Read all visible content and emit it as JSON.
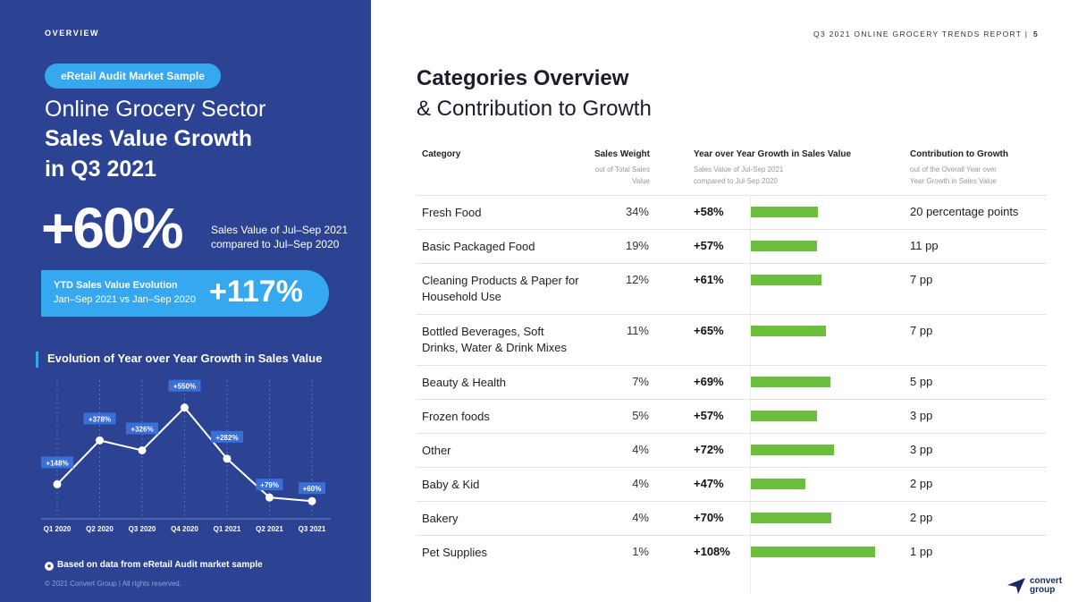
{
  "left": {
    "overview_label": "OVERVIEW",
    "pill": "eRetail Audit Market Sample",
    "headline_1": "Online Grocery Sector",
    "headline_2": "Sales Value Growth",
    "headline_3": "in Q3 2021",
    "big_value": "+60%",
    "big_sub": "Sales Value of Jul–Sep 2021 compared to Jul–Sep 2020",
    "ytd_title": "YTD Sales Value Evolution",
    "ytd_sub": "Jan–Sep 2021 vs Jan–Sep 2020",
    "ytd_value": "+117%",
    "chart_title": "Evolution of Year over Year Growth in Sales Value",
    "note": "Based on data from eRetail Audit market sample",
    "copyright": "© 2021 Convert Group  |  All rights reserved."
  },
  "chart_data": {
    "type": "line",
    "title": "Evolution of Year over Year Growth in Sales Value",
    "categories": [
      "Q1 2020",
      "Q2 2020",
      "Q3 2020",
      "Q4 2020",
      "Q1 2021",
      "Q2 2021",
      "Q3 2021"
    ],
    "values": [
      148,
      378,
      326,
      550,
      282,
      79,
      60
    ],
    "labels": [
      "+148%",
      "+378%",
      "+326%",
      "+550%",
      "+282%",
      "+79%",
      "+60%"
    ],
    "ylim": [
      0,
      600
    ],
    "grid": true,
    "colors": {
      "line": "#ffffff",
      "label_bg": "#3a6fd8",
      "grid": "#5a70b8"
    }
  },
  "right": {
    "report_header": "Q3 2021 ONLINE GROCERY TRENDS REPORT  |",
    "page_number": "5",
    "title": "Categories Overview",
    "subtitle": "& Contribution to Growth",
    "columns": {
      "category": "Category",
      "weight": "Sales Weight",
      "weight_sub": "out of Total Sales Value",
      "growth": "Year over Year Growth in Sales Value",
      "growth_sub_1": "Sales Value of Jul-Sep 2021",
      "growth_sub_2": "compared to Jul-Sep 2020",
      "contribution": "Contribution to Growth",
      "contribution_sub_1": "out of the Overall Year over",
      "contribution_sub_2": "Year Growth in Sales Value"
    },
    "rows": [
      {
        "category": "Fresh Food",
        "weight": "34%",
        "growth": "+58%",
        "growth_value": 58,
        "contribution": "20 percentage points"
      },
      {
        "category": "Basic Packaged Food",
        "weight": "19%",
        "growth": "+57%",
        "growth_value": 57,
        "contribution": "11 pp"
      },
      {
        "category": "Cleaning Products & Paper for Household Use",
        "weight": "12%",
        "growth": "+61%",
        "growth_value": 61,
        "contribution": "7 pp"
      },
      {
        "category": "Bottled Beverages, Soft Drinks, Water & Drink Mixes",
        "weight": "11%",
        "growth": "+65%",
        "growth_value": 65,
        "contribution": "7 pp"
      },
      {
        "category": "Beauty & Health",
        "weight": "7%",
        "growth": "+69%",
        "growth_value": 69,
        "contribution": "5 pp"
      },
      {
        "category": "Frozen foods",
        "weight": "5%",
        "growth": "+57%",
        "growth_value": 57,
        "contribution": "3 pp"
      },
      {
        "category": "Other",
        "weight": "4%",
        "growth": "+72%",
        "growth_value": 72,
        "contribution": "3 pp"
      },
      {
        "category": "Baby & Kid",
        "weight": "4%",
        "growth": "+47%",
        "growth_value": 47,
        "contribution": "2 pp"
      },
      {
        "category": "Bakery",
        "weight": "4%",
        "growth": "+70%",
        "growth_value": 70,
        "contribution": "2 pp"
      },
      {
        "category": "Pet Supplies",
        "weight": "1%",
        "growth": "+108%",
        "growth_value": 108,
        "contribution": "1 pp"
      }
    ],
    "bar_color": "#6cbf3c"
  },
  "logo": {
    "line_1": "convert",
    "line_2": "group",
    "icon": "paper-plane-icon"
  }
}
